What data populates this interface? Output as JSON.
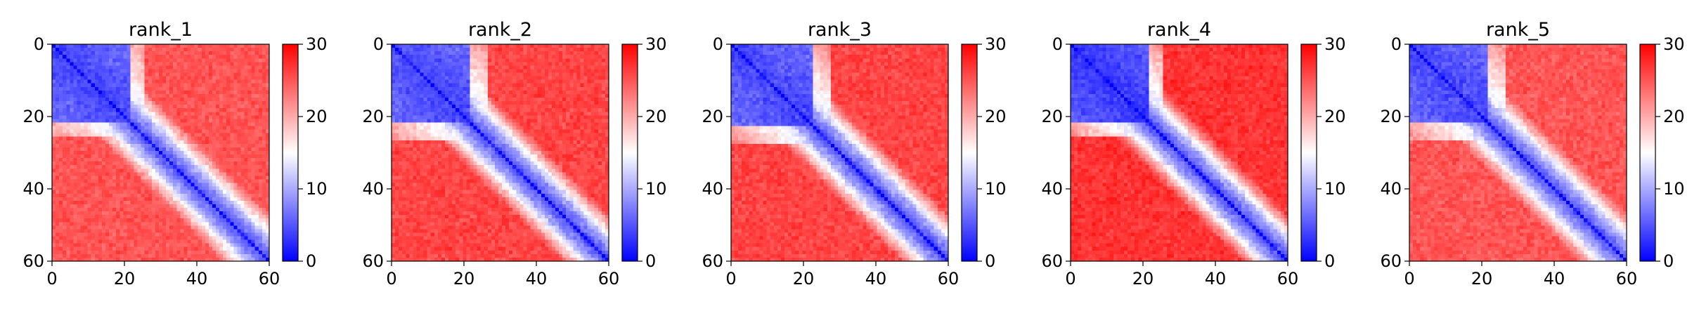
{
  "chart_data": [
    {
      "type": "heatmap",
      "title": "rank_1",
      "x_ticks": [
        "0",
        "20",
        "40",
        "60"
      ],
      "y_ticks": [
        "0",
        "20",
        "40",
        "60"
      ],
      "xlim": [
        0,
        60
      ],
      "ylim": [
        0,
        60
      ],
      "colorbar": {
        "ticks": [
          "0",
          "10",
          "20",
          "30"
        ],
        "range": [
          0,
          30
        ],
        "cmap": "bwr"
      },
      "structure": {
        "grid_size": 61,
        "block_end": 21,
        "interior_edge": 25,
        "diagonal_band_width": 4.5,
        "in_block_value": 4,
        "off_block_value": 25,
        "band_value": 4,
        "seed": 11
      }
    },
    {
      "type": "heatmap",
      "title": "rank_2",
      "x_ticks": [
        "0",
        "20",
        "40",
        "60"
      ],
      "y_ticks": [
        "0",
        "20",
        "40",
        "60"
      ],
      "xlim": [
        0,
        60
      ],
      "ylim": [
        0,
        60
      ],
      "colorbar": {
        "ticks": [
          "0",
          "10",
          "20",
          "30"
        ],
        "range": [
          0,
          30
        ],
        "cmap": "bwr"
      },
      "structure": {
        "grid_size": 61,
        "block_end": 21,
        "interior_edge": 26,
        "diagonal_band_width": 4.5,
        "in_block_value": 4,
        "off_block_value": 26,
        "band_value": 4,
        "seed": 23
      }
    },
    {
      "type": "heatmap",
      "title": "rank_3",
      "x_ticks": [
        "0",
        "20",
        "40",
        "60"
      ],
      "y_ticks": [
        "0",
        "20",
        "40",
        "60"
      ],
      "xlim": [
        0,
        60
      ],
      "ylim": [
        0,
        60
      ],
      "colorbar": {
        "ticks": [
          "0",
          "10",
          "20",
          "30"
        ],
        "range": [
          0,
          30
        ],
        "cmap": "bwr"
      },
      "structure": {
        "grid_size": 61,
        "block_end": 22,
        "interior_edge": 27,
        "diagonal_band_width": 4.5,
        "in_block_value": 4,
        "off_block_value": 26,
        "band_value": 4,
        "seed": 37
      }
    },
    {
      "type": "heatmap",
      "title": "rank_4",
      "x_ticks": [
        "0",
        "20",
        "40",
        "60"
      ],
      "y_ticks": [
        "0",
        "20",
        "40",
        "60"
      ],
      "xlim": [
        0,
        60
      ],
      "ylim": [
        0,
        60
      ],
      "colorbar": {
        "ticks": [
          "0",
          "10",
          "20",
          "30"
        ],
        "range": [
          0,
          30
        ],
        "cmap": "bwr"
      },
      "structure": {
        "grid_size": 61,
        "block_end": 21,
        "interior_edge": 25,
        "diagonal_band_width": 4.5,
        "in_block_value": 3,
        "off_block_value": 27,
        "band_value": 4,
        "seed": 51
      }
    },
    {
      "type": "heatmap",
      "title": "rank_5",
      "x_ticks": [
        "0",
        "20",
        "40",
        "60"
      ],
      "y_ticks": [
        "0",
        "20",
        "40",
        "60"
      ],
      "xlim": [
        0,
        60
      ],
      "ylim": [
        0,
        60
      ],
      "colorbar": {
        "ticks": [
          "0",
          "10",
          "20",
          "30"
        ],
        "range": [
          0,
          30
        ],
        "cmap": "bwr"
      },
      "structure": {
        "grid_size": 61,
        "block_end": 21,
        "interior_edge": 26,
        "diagonal_band_width": 4.5,
        "in_block_value": 4,
        "off_block_value": 25,
        "band_value": 4,
        "seed": 67
      }
    }
  ]
}
